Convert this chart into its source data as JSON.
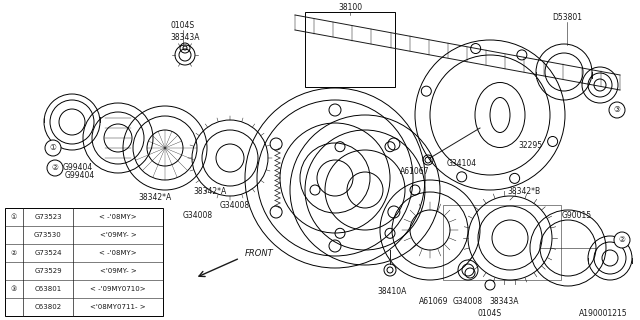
{
  "bg_color": "#FFFFFF",
  "fig_width": 6.4,
  "fig_height": 3.2,
  "dpi": 100,
  "catalog_num": "A190001215",
  "line_color": "#1a1a1a",
  "text_color": "#000000",
  "lw": 0.7,
  "legend_rows": [
    [
      "1",
      "G73523",
      "< -'08MY>"
    ],
    [
      "",
      "G73530",
      "<'09MY- >"
    ],
    [
      "2",
      "G73524",
      "< -'08MY>"
    ],
    [
      "",
      "G73529",
      "<'09MY- >"
    ],
    [
      "3",
      "C63801",
      "< -'09MY0710>"
    ],
    [
      "",
      "C63802",
      "<'08MY0711- >"
    ]
  ]
}
